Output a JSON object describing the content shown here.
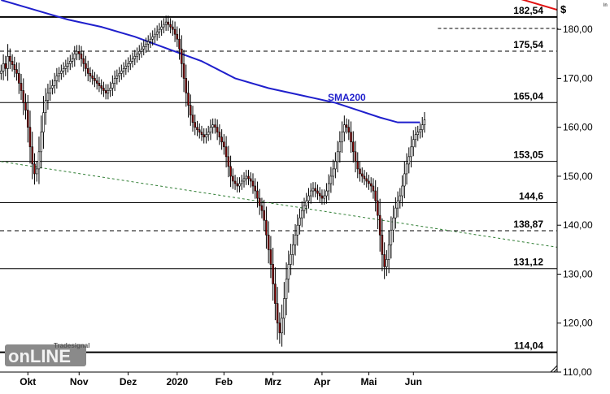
{
  "chart_data": {
    "type": "candlestick",
    "title": "",
    "currency_label": "$",
    "corner_mark": "ln",
    "ylim": [
      110,
      186
    ],
    "y_ticks": [
      110,
      120,
      130,
      140,
      150,
      160,
      170,
      180
    ],
    "y_tick_labels": [
      "110,00",
      "120,00",
      "130,00",
      "140,00",
      "150,00",
      "160,00",
      "170,00",
      "180,00"
    ],
    "x_labels": [
      "Okt",
      "Nov",
      "Dez",
      "2020",
      "Feb",
      "Mrz",
      "Apr",
      "Mai",
      "Jun"
    ],
    "x_label_index": [
      12,
      35,
      57,
      79,
      100,
      122,
      144,
      165,
      185
    ],
    "levels": [
      {
        "value": 182.54,
        "label": "182,54",
        "style": "solid"
      },
      {
        "value": 175.54,
        "label": "175,54",
        "style": "dashed"
      },
      {
        "value": 165.04,
        "label": "165,04",
        "style": "solid"
      },
      {
        "value": 153.05,
        "label": "153,05",
        "style": "solid"
      },
      {
        "value": 144.6,
        "label": "144,6",
        "style": "solid"
      },
      {
        "value": 138.87,
        "label": "138,87",
        "style": "dashed"
      },
      {
        "value": 131.12,
        "label": "131,12",
        "style": "solid"
      },
      {
        "value": 114.04,
        "label": "114,04",
        "style": "solid"
      }
    ],
    "sma200": {
      "label": "SMA200",
      "color": "#1f1fcc",
      "points": [
        [
          0,
          186.0
        ],
        [
          15,
          184.0
        ],
        [
          30,
          182.0
        ],
        [
          45,
          180.5
        ],
        [
          60,
          178.5
        ],
        [
          75,
          176.0
        ],
        [
          90,
          173.5
        ],
        [
          105,
          170.0
        ],
        [
          120,
          168.0
        ],
        [
          135,
          166.5
        ],
        [
          150,
          165.0
        ],
        [
          160,
          163.5
        ],
        [
          170,
          162.0
        ],
        [
          178,
          161.0
        ],
        [
          188,
          161.0
        ]
      ]
    },
    "downtrend": {
      "color": "#e01010",
      "points": [
        [
          130,
          200.0
        ],
        [
          250,
          184.0
        ]
      ]
    },
    "ma_dashed": {
      "color": "#2e7d32",
      "points": [
        [
          0,
          153.0
        ],
        [
          250,
          135.5
        ]
      ]
    },
    "short_dash": {
      "points": [
        [
          196,
          180.2
        ],
        [
          250,
          180.2
        ]
      ]
    },
    "candle_bull_color": "#ffffff",
    "candle_bear_color": "#8b0000",
    "candles_close": [
      171.5,
      173.0,
      172.0,
      174.5,
      173.5,
      172.8,
      171.8,
      171.0,
      169.0,
      167.5,
      165.0,
      163.5,
      160.0,
      156.0,
      152.5,
      150.5,
      151.5,
      155.0,
      159.0,
      163.0,
      165.5,
      167.0,
      168.0,
      168.5,
      169.5,
      170.5,
      171.0,
      171.5,
      172.0,
      172.5,
      173.0,
      173.5,
      174.0,
      175.0,
      175.5,
      175.0,
      174.0,
      173.0,
      172.0,
      171.0,
      170.5,
      170.0,
      169.5,
      169.0,
      168.5,
      168.0,
      167.5,
      167.0,
      167.5,
      168.0,
      169.0,
      170.0,
      170.5,
      171.0,
      171.5,
      172.0,
      172.5,
      173.0,
      173.5,
      174.0,
      174.5,
      175.0,
      175.5,
      176.0,
      176.5,
      177.0,
      177.5,
      178.0,
      178.5,
      179.0,
      179.5,
      180.0,
      180.5,
      181.0,
      181.5,
      181.0,
      180.5,
      180.0,
      179.0,
      178.0,
      176.0,
      173.0,
      170.0,
      167.0,
      164.5,
      162.5,
      161.0,
      160.0,
      159.5,
      159.0,
      158.5,
      158.0,
      158.5,
      159.0,
      160.0,
      160.5,
      160.0,
      159.0,
      158.0,
      157.0,
      156.0,
      154.0,
      152.0,
      150.0,
      149.0,
      148.5,
      148.0,
      148.5,
      149.0,
      149.5,
      150.0,
      149.5,
      149.0,
      148.0,
      147.0,
      145.5,
      144.0,
      143.0,
      141.0,
      138.0,
      135.0,
      132.0,
      128.0,
      124.0,
      120.0,
      118.0,
      121.0,
      125.0,
      129.0,
      132.0,
      134.0,
      136.0,
      138.0,
      140.0,
      141.5,
      143.0,
      144.0,
      145.0,
      146.0,
      147.0,
      147.5,
      147.0,
      146.5,
      146.0,
      145.5,
      146.0,
      147.0,
      148.5,
      150.0,
      151.5,
      153.0,
      155.0,
      157.0,
      159.0,
      160.5,
      160.0,
      159.0,
      157.0,
      155.0,
      153.0,
      151.5,
      150.5,
      150.0,
      149.5,
      149.0,
      148.5,
      148.0,
      147.0,
      145.0,
      142.0,
      138.0,
      134.0,
      131.5,
      133.0,
      136.0,
      139.0,
      141.5,
      143.5,
      145.0,
      146.0,
      148.0,
      150.5,
      152.5,
      154.0,
      156.0,
      157.5,
      158.5,
      159.0,
      159.5,
      160.5,
      161.5
    ]
  }
}
